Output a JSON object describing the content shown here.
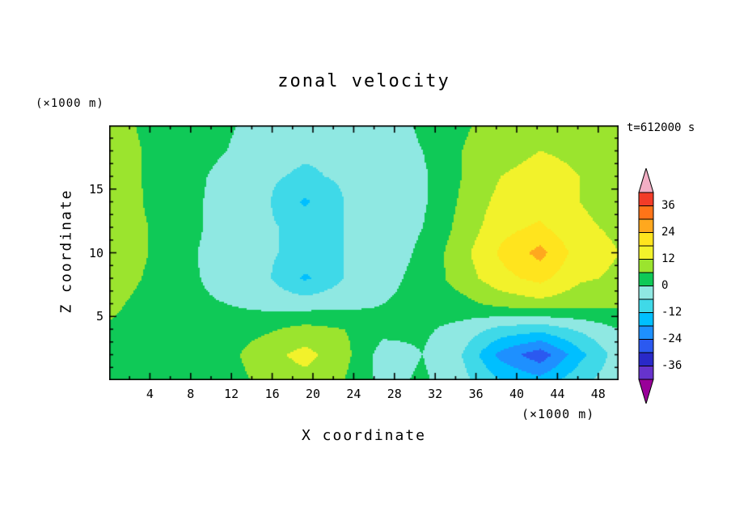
{
  "title": "zonal velocity",
  "time_label": "t=612000 s",
  "axes": {
    "x_label": "X coordinate",
    "x_unit": "(×1000 m)",
    "y_label": "Z coordinate",
    "y_unit": "(×1000 m)",
    "x_ticks": [
      4,
      8,
      12,
      16,
      20,
      24,
      28,
      32,
      36,
      40,
      44,
      48
    ],
    "y_ticks": [
      5,
      10,
      15
    ],
    "x_range": [
      0,
      50
    ],
    "y_range": [
      0,
      20
    ]
  },
  "chart_data": {
    "type": "heatmap",
    "subtype": "filled-contour",
    "title": "zonal velocity",
    "xlabel": "X coordinate (×1000 m)",
    "ylabel": "Z coordinate (×1000 m)",
    "annotation": "t=612000 s",
    "x": [
      0,
      3.85,
      7.7,
      11.5,
      15.4,
      19.2,
      23.1,
      26.9,
      30.8,
      34.6,
      38.5,
      42.3,
      46.2,
      50
    ],
    "z": [
      0,
      2,
      4,
      6,
      8,
      10,
      12,
      14,
      16,
      18,
      20
    ],
    "values": [
      [
        4,
        3,
        2,
        3,
        8,
        10,
        6,
        -2,
        1,
        -4,
        -12,
        -16,
        -8,
        -2
      ],
      [
        4,
        3,
        2,
        4,
        10,
        14,
        8,
        -3,
        0,
        -6,
        -20,
        -28,
        -14,
        -3
      ],
      [
        5,
        3,
        2,
        3,
        5,
        8,
        6,
        2,
        1,
        -2,
        -8,
        -10,
        -5,
        0
      ],
      [
        8,
        3,
        1,
        0,
        -2,
        -3,
        -2,
        0,
        2,
        4,
        8,
        10,
        8,
        7
      ],
      [
        11,
        5,
        1,
        -2,
        -5,
        -13,
        -6,
        -2,
        2,
        9,
        16,
        20,
        13,
        11
      ],
      [
        12,
        6,
        1,
        -3,
        -5,
        -8,
        -6,
        -3,
        1,
        10,
        19,
        26,
        15,
        12
      ],
      [
        12,
        6,
        2,
        -3,
        -5,
        -8,
        -6,
        -3,
        0,
        8,
        16,
        19,
        13,
        11
      ],
      [
        12,
        5,
        2,
        -3,
        -5,
        -13,
        -6,
        -3,
        -1,
        7,
        14,
        15,
        12,
        10
      ],
      [
        11,
        5,
        2,
        -2,
        -5,
        -7,
        -5,
        -3,
        -1,
        6,
        12,
        14,
        12,
        10
      ],
      [
        11,
        5,
        3,
        0,
        -4,
        -5,
        -5,
        -3,
        0,
        6,
        10,
        12,
        11,
        10
      ],
      [
        10,
        4,
        3,
        1,
        -3,
        -4,
        -4,
        -3,
        1,
        5,
        9,
        11,
        11,
        10
      ]
    ],
    "interval": 6,
    "levels": [
      -42,
      -36,
      -30,
      -24,
      -18,
      -12,
      -6,
      0,
      6,
      12,
      18,
      24,
      30,
      36,
      42
    ],
    "band_colors": [
      "#6633CC",
      "#2929C8",
      "#2B59F0",
      "#1E90FF",
      "#00BFFF",
      "#3FD9E8",
      "#8FE8E2",
      "#0FC957",
      "#9BE42E",
      "#F2F22B",
      "#FFE41E",
      "#FFA81E",
      "#FF7418",
      "#F23C28"
    ],
    "below_color": "#990099",
    "above_color": "#F2AEC4",
    "colorbar_labels": [
      36,
      24,
      12,
      0,
      -12,
      -24,
      -36
    ],
    "grid": false,
    "legend_position": "right"
  }
}
